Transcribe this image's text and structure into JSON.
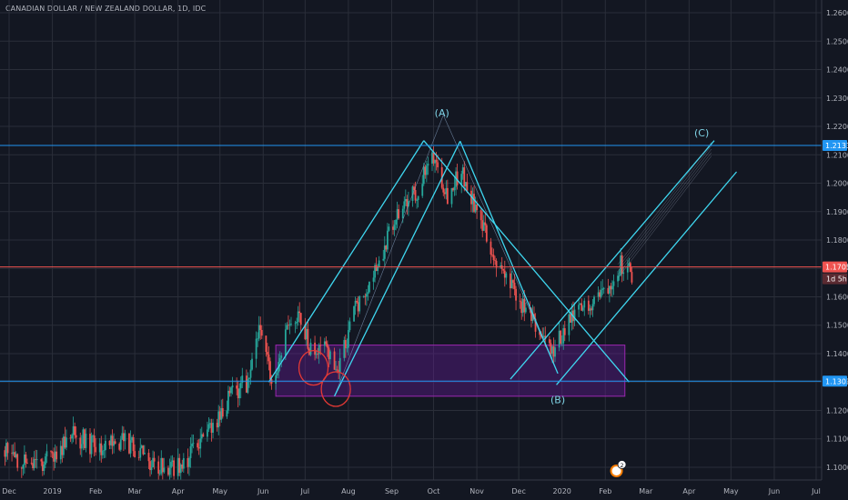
{
  "header": {
    "title": "CANADIAN DOLLAR / NEW ZEALAND DOLLAR, 1D, IDC"
  },
  "colors": {
    "background": "#131722",
    "grid": "#2a2e39",
    "up": "#26a69a",
    "down": "#ef5350",
    "channel": "#3fd7f0",
    "hline_blue": "#2196f3",
    "hline_red": "#f05350",
    "zone_fill": "#6a1b9a",
    "zone_stroke": "#9c27b0",
    "marker_red": "#e53935"
  },
  "chart_data": {
    "type": "candlestick",
    "symbol": "CANADIAN DOLLAR / NEW ZEALAND DOLLAR",
    "interval": "1D",
    "source": "IDC",
    "ylim": [
      1.0955,
      1.2645
    ],
    "y_ticks": [
      1.26,
      1.25,
      1.24,
      1.23,
      1.22,
      1.21,
      1.2,
      1.19,
      1.18,
      1.17,
      1.16,
      1.15,
      1.14,
      1.13,
      1.12,
      1.11,
      1.1
    ],
    "x_ticks": [
      {
        "label": "Dec",
        "date": "2018-12-01"
      },
      {
        "label": "2019",
        "date": "2019-01-01"
      },
      {
        "label": "Feb",
        "date": "2019-02-01"
      },
      {
        "label": "Mar",
        "date": "2019-03-01"
      },
      {
        "label": "Apr",
        "date": "2019-04-01"
      },
      {
        "label": "May",
        "date": "2019-05-01"
      },
      {
        "label": "Jun",
        "date": "2019-06-01"
      },
      {
        "label": "Jul",
        "date": "2019-07-01"
      },
      {
        "label": "Aug",
        "date": "2019-08-01"
      },
      {
        "label": "Sep",
        "date": "2019-09-01"
      },
      {
        "label": "Oct",
        "date": "2019-10-01"
      },
      {
        "label": "Nov",
        "date": "2019-11-01"
      },
      {
        "label": "Dec",
        "date": "2019-12-01"
      },
      {
        "label": "2020",
        "date": "2020-01-01"
      },
      {
        "label": "Feb",
        "date": "2020-02-01"
      },
      {
        "label": "Mar",
        "date": "2020-03-01"
      },
      {
        "label": "Apr",
        "date": "2020-04-01"
      },
      {
        "label": "May",
        "date": "2020-05-01"
      },
      {
        "label": "Jun",
        "date": "2020-06-01"
      },
      {
        "label": "Jul",
        "date": "2020-07-01"
      }
    ],
    "price_path": [
      [
        "2018-12-01",
        1.106
      ],
      [
        "2018-12-15",
        1.1
      ],
      [
        "2019-01-01",
        1.103
      ],
      [
        "2019-01-15",
        1.112
      ],
      [
        "2019-02-01",
        1.107
      ],
      [
        "2019-02-20",
        1.11
      ],
      [
        "2019-03-10",
        1.103
      ],
      [
        "2019-03-25",
        1.098
      ],
      [
        "2019-04-10",
        1.104
      ],
      [
        "2019-04-25",
        1.114
      ],
      [
        "2019-05-05",
        1.123
      ],
      [
        "2019-05-20",
        1.13
      ],
      [
        "2019-05-28",
        1.148
      ],
      [
        "2019-06-08",
        1.131
      ],
      [
        "2019-06-18",
        1.148
      ],
      [
        "2019-06-27",
        1.152
      ],
      [
        "2019-07-08",
        1.138
      ],
      [
        "2019-07-15",
        1.146
      ],
      [
        "2019-07-24",
        1.132
      ],
      [
        "2019-08-05",
        1.155
      ],
      [
        "2019-08-20",
        1.17
      ],
      [
        "2019-09-05",
        1.188
      ],
      [
        "2019-09-20",
        1.198
      ],
      [
        "2019-10-01",
        1.21
      ],
      [
        "2019-10-12",
        1.195
      ],
      [
        "2019-10-20",
        1.205
      ],
      [
        "2019-11-01",
        1.19
      ],
      [
        "2019-11-15",
        1.172
      ],
      [
        "2019-12-01",
        1.158
      ],
      [
        "2019-12-15",
        1.148
      ],
      [
        "2019-12-25",
        1.14
      ],
      [
        "2020-01-05",
        1.15
      ],
      [
        "2020-01-20",
        1.158
      ],
      [
        "2020-02-01",
        1.163
      ],
      [
        "2020-02-12",
        1.172
      ],
      [
        "2020-02-20",
        1.168
      ]
    ],
    "horizontal_lines": [
      {
        "price": 1.2133,
        "label": "1.2133",
        "color": "#2196f3"
      },
      {
        "price": 1.1705,
        "label": "1.1705",
        "color": "#f05350"
      },
      {
        "price": 1.1303,
        "label": "1.1303",
        "color": "#2196f3"
      }
    ],
    "countdown_label": "1d 5h",
    "zone": {
      "start": "2019-06-10",
      "end": "2020-02-15",
      "top": 1.143,
      "bottom": 1.125
    },
    "wave_labels": [
      {
        "text": "(A)",
        "date": "2019-10-07",
        "price": 1.2235
      },
      {
        "text": "(B)",
        "date": "2019-12-29",
        "price": 1.1225
      },
      {
        "text": "(C)",
        "date": "2020-04-10",
        "price": 1.2165
      }
    ],
    "channels": [
      {
        "lines": [
          [
            [
              "2019-06-05",
              1.13
            ],
            [
              "2019-09-24",
              1.215
            ]
          ],
          [
            [
              "2019-07-22",
              1.125
            ],
            [
              "2019-10-20",
              1.2148
            ]
          ]
        ]
      },
      {
        "lines": [
          [
            [
              "2019-09-24",
              1.215
            ],
            [
              "2020-02-18",
              1.13
            ]
          ],
          [
            [
              "2019-10-20",
              1.2148
            ],
            [
              "2019-12-29",
              1.133
            ]
          ]
        ]
      },
      {
        "lines": [
          [
            [
              "2019-11-25",
              1.131
            ],
            [
              "2020-04-19",
              1.215
            ]
          ],
          [
            [
              "2019-12-28",
              1.129
            ],
            [
              "2020-05-05",
              1.204
            ]
          ]
        ]
      }
    ],
    "thin_lines": [
      [
        [
          "2019-07-22",
          1.125
        ],
        [
          "2019-10-08",
          1.224
        ]
      ],
      [
        [
          "2019-10-08",
          1.224
        ],
        [
          "2019-12-29",
          1.133
        ]
      ]
    ],
    "circle_markers": [
      {
        "date": "2019-07-07",
        "price": 1.135
      },
      {
        "date": "2019-07-23",
        "price": 1.1275
      }
    ],
    "event_badge": {
      "date": "2020-02-09",
      "count": "2"
    }
  }
}
